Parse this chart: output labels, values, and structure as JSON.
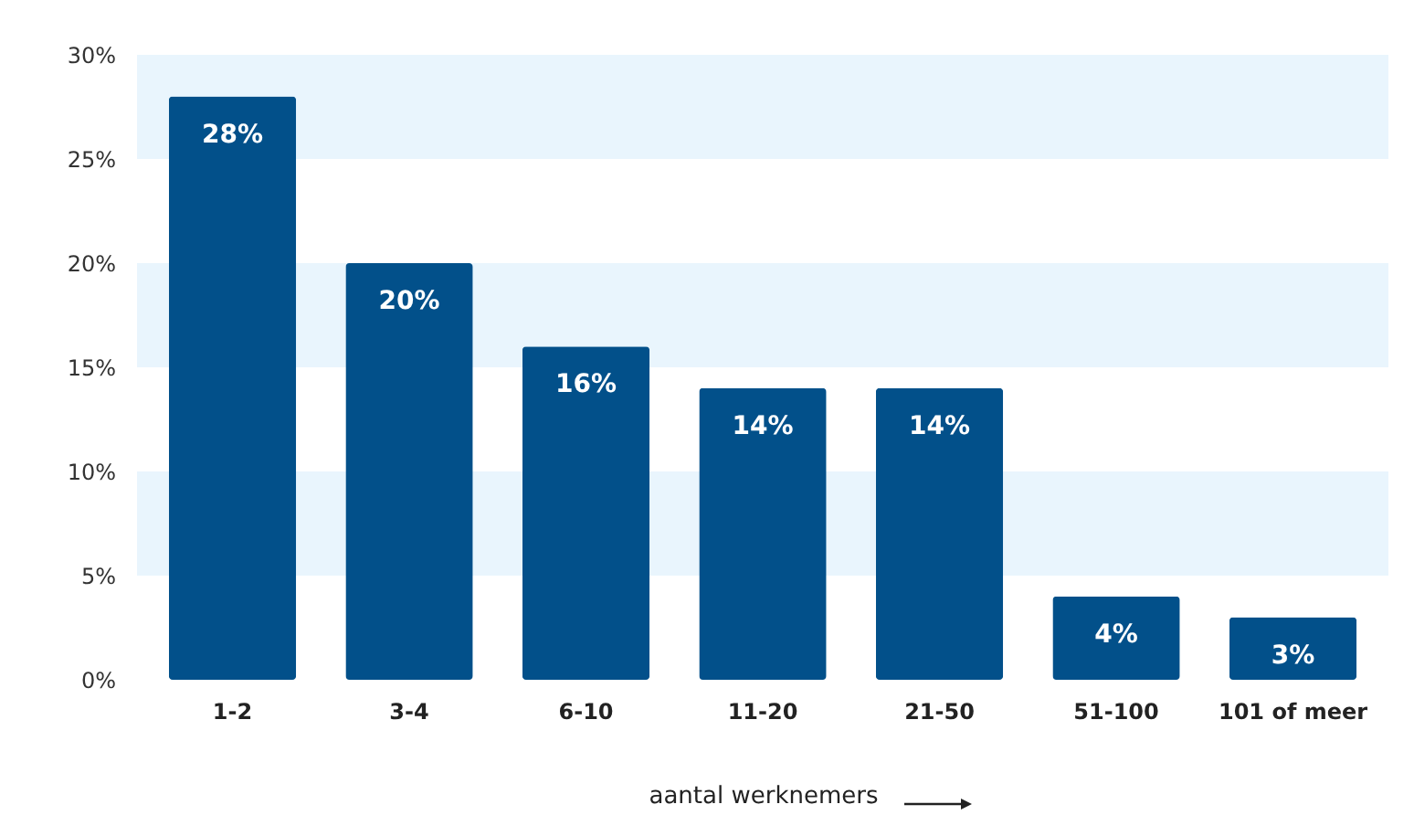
{
  "chart_data": {
    "type": "bar",
    "xlabel": "aantal werknemers",
    "categories": [
      "1-2",
      "3-4",
      "6-10",
      "11-20",
      "21-50",
      "51-100",
      "101 of meer"
    ],
    "values": [
      28,
      20,
      16,
      14,
      14,
      4,
      3
    ],
    "value_labels": [
      "28%",
      "20%",
      "16%",
      "14%",
      "14%",
      "4%",
      "3%"
    ],
    "color": "#02508a",
    "ylim": [
      0,
      30
    ],
    "yticks": [
      {
        "value": 0,
        "label": "0%"
      },
      {
        "value": 5,
        "label": "5%"
      },
      {
        "value": 10,
        "label": "10%"
      },
      {
        "value": 15,
        "label": "15%"
      },
      {
        "value": 20,
        "label": "20%"
      },
      {
        "value": 25,
        "label": "25%"
      },
      {
        "value": 30,
        "label": "30%"
      }
    ],
    "bands": [
      {
        "axis": "y",
        "from": 5,
        "to": 10,
        "color": "#e9f5fd"
      },
      {
        "axis": "y",
        "from": 15,
        "to": 20,
        "color": "#e9f5fd"
      },
      {
        "axis": "y",
        "from": 25,
        "to": 30,
        "color": "#e9f5fd"
      }
    ],
    "grid": false
  }
}
